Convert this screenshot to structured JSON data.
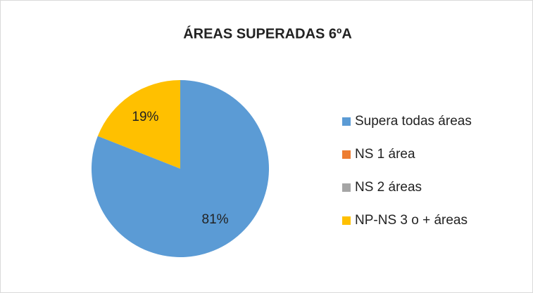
{
  "chart_data": {
    "type": "pie",
    "title": "ÁREAS SUPERADAS 6ºA",
    "categories": [
      "Supera todas áreas",
      "NS 1 área",
      "NS 2 áreas",
      "NP-NS 3 o + áreas"
    ],
    "values": [
      81,
      0,
      0,
      19
    ],
    "value_labels": [
      "81%",
      null,
      null,
      "19%"
    ],
    "colors": [
      "#5b9bd5",
      "#ed7d31",
      "#a5a5a5",
      "#ffc000"
    ],
    "legend": "right"
  }
}
